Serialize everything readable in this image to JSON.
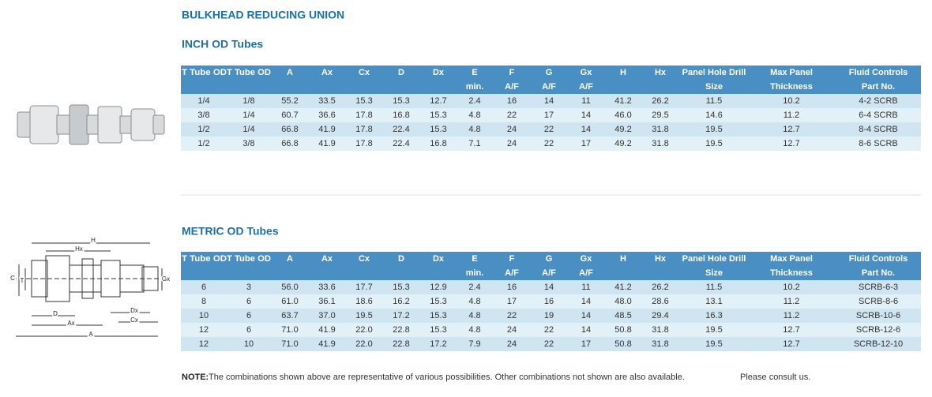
{
  "title": "BULKHEAD REDUCING UNION",
  "inch": {
    "heading": "INCH OD Tubes",
    "header": [
      [
        "T Tube OD"
      ],
      [
        "T Tube OD"
      ],
      [
        "A"
      ],
      [
        "Ax"
      ],
      [
        "Cx"
      ],
      [
        "D"
      ],
      [
        "Dx"
      ],
      [
        "E",
        "min."
      ],
      [
        "F",
        "A/F"
      ],
      [
        "G",
        "A/F"
      ],
      [
        "Gx",
        "A/F"
      ],
      [
        "H"
      ],
      [
        "Hx"
      ],
      [
        "Panel Hole Drill",
        "Size"
      ],
      [
        "Max Panel",
        "Thickness"
      ],
      [
        "Fluid Controls",
        "Part No."
      ]
    ],
    "rows": [
      [
        "1/4",
        "1/8",
        "55.2",
        "33.5",
        "15.3",
        "15.3",
        "12.7",
        "2.4",
        "16",
        "14",
        "11",
        "41.2",
        "26.2",
        "11.5",
        "10.2",
        "4-2 SCRB"
      ],
      [
        "3/8",
        "1/4",
        "60.7",
        "36.6",
        "17.8",
        "16.8",
        "15.3",
        "4.8",
        "22",
        "17",
        "14",
        "46.0",
        "29.5",
        "14.6",
        "11.2",
        "6-4 SCRB"
      ],
      [
        "1/2",
        "1/4",
        "66.8",
        "41.9",
        "17.8",
        "22.4",
        "15.3",
        "4.8",
        "24",
        "22",
        "14",
        "49.2",
        "31.8",
        "19.5",
        "12.7",
        "8-4 SCRB"
      ],
      [
        "1/2",
        "3/8",
        "66.8",
        "41.9",
        "17.8",
        "22.4",
        "16.8",
        "7.1",
        "24",
        "22",
        "17",
        "49.2",
        "31.8",
        "19.5",
        "12.7",
        "8-6 SCRB"
      ]
    ]
  },
  "metric": {
    "heading": "METRIC OD Tubes",
    "header": [
      [
        "T Tube OD"
      ],
      [
        "T Tube OD"
      ],
      [
        "A"
      ],
      [
        "Ax"
      ],
      [
        "Cx"
      ],
      [
        "D"
      ],
      [
        "Dx"
      ],
      [
        "E",
        "min."
      ],
      [
        "F",
        "A/F"
      ],
      [
        "G",
        "A/F"
      ],
      [
        "Gx",
        "A/F"
      ],
      [
        "H"
      ],
      [
        "Hx"
      ],
      [
        "Panel Hole Drill",
        "Size"
      ],
      [
        "Max Panel",
        "Thickness"
      ],
      [
        "Fluid Controls",
        "Part No."
      ]
    ],
    "rows": [
      [
        "6",
        "3",
        "56.0",
        "33.6",
        "17.7",
        "15.3",
        "12.9",
        "2.4",
        "16",
        "14",
        "11",
        "41.2",
        "26.2",
        "11.5",
        "10.2",
        "SCRB-6-3"
      ],
      [
        "8",
        "6",
        "61.0",
        "36.1",
        "18.6",
        "16.2",
        "15.3",
        "4.8",
        "17",
        "16",
        "14",
        "48.0",
        "28.6",
        "13.1",
        "11.2",
        "SCRB-8-6"
      ],
      [
        "10",
        "6",
        "63.7",
        "37.0",
        "19.5",
        "17.2",
        "15.3",
        "4.8",
        "22",
        "19",
        "14",
        "48.5",
        "29.4",
        "16.3",
        "11.2",
        "SCRB-10-6"
      ],
      [
        "12",
        "6",
        "71.0",
        "41.9",
        "22.0",
        "22.8",
        "15.3",
        "4.8",
        "24",
        "22",
        "14",
        "50.8",
        "31.8",
        "19.5",
        "12.7",
        "SCRB-12-6"
      ],
      [
        "12",
        "10",
        "71.0",
        "41.9",
        "22.0",
        "22.8",
        "17.2",
        "7.9",
        "24",
        "22",
        "17",
        "50.8",
        "31.8",
        "19.5",
        "12.7",
        "SCRB-12-10"
      ]
    ]
  },
  "diagram": {
    "labels": [
      "H",
      "Hx",
      "C",
      "T",
      "Gx",
      "D",
      "Dx",
      "Ax",
      "Cx",
      "A"
    ]
  },
  "note": {
    "label": "NOTE:",
    "text": "The combinations shown above are representative of various possibilities. Other combinations not shown are also available.",
    "consult": "Please consult us."
  }
}
